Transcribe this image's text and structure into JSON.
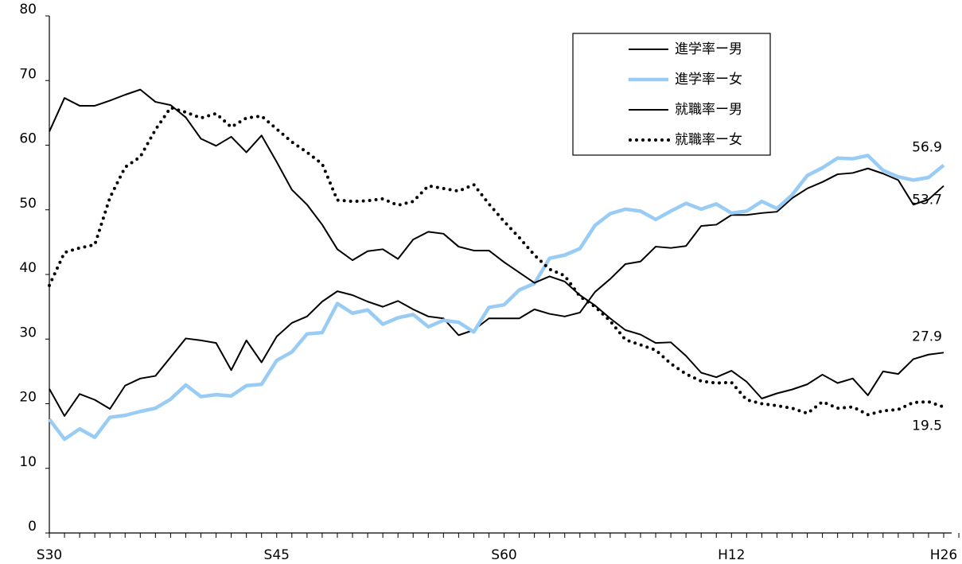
{
  "chart_data": {
    "type": "line",
    "categories": [
      "S30",
      null,
      null,
      null,
      null,
      null,
      null,
      null,
      null,
      null,
      null,
      null,
      null,
      null,
      null,
      "S45",
      null,
      null,
      null,
      null,
      null,
      null,
      null,
      null,
      null,
      null,
      null,
      null,
      null,
      null,
      "S60",
      null,
      null,
      null,
      null,
      null,
      null,
      null,
      null,
      null,
      null,
      null,
      null,
      null,
      null,
      "H12",
      null,
      null,
      null,
      null,
      null,
      null,
      null,
      null,
      null,
      null,
      null,
      null,
      null,
      "H26"
    ],
    "ylim": [
      0,
      80
    ],
    "yticks": [
      0,
      10,
      20,
      30,
      40,
      50,
      60,
      70,
      80
    ],
    "grid": false,
    "legend": "top-right",
    "series": [
      {
        "name": "進学率ー男",
        "color": "#000000",
        "dash": "solid",
        "width": 2,
        "values": [
          22.3,
          18.1,
          21.5,
          20.6,
          19.2,
          22.8,
          23.9,
          24.3,
          27.2,
          30.1,
          29.8,
          29.4,
          25.2,
          29.8,
          26.4,
          30.4,
          32.5,
          33.5,
          35.8,
          37.4,
          36.8,
          35.8,
          35.0,
          35.9,
          34.6,
          33.5,
          33.2,
          30.6,
          31.4,
          33.2,
          33.2,
          33.2,
          34.6,
          33.9,
          33.5,
          34.1,
          37.3,
          39.3,
          41.6,
          42.0,
          44.3,
          44.1,
          44.4,
          47.5,
          47.7,
          49.2,
          49.2,
          49.5,
          49.7,
          51.8,
          53.3,
          54.3,
          55.5,
          55.7,
          56.4,
          55.6,
          54.6,
          50.8,
          51.6,
          53.7
        ]
      },
      {
        "name": "進学率ー女",
        "color": "#99ccf5",
        "dash": "solid",
        "width": 4.5,
        "values": [
          17.6,
          14.5,
          16.1,
          14.8,
          17.9,
          18.2,
          18.8,
          19.3,
          20.7,
          22.9,
          21.1,
          21.4,
          21.2,
          22.8,
          23.0,
          26.7,
          28.0,
          30.8,
          31.0,
          35.5,
          34.0,
          34.5,
          32.3,
          33.3,
          33.8,
          31.9,
          32.9,
          32.6,
          31.1,
          34.9,
          35.3,
          37.6,
          38.6,
          42.5,
          43.0,
          44.0,
          47.6,
          49.4,
          50.1,
          49.8,
          48.5,
          49.8,
          51.0,
          50.1,
          50.9,
          49.5,
          49.8,
          51.3,
          50.2,
          52.3,
          55.3,
          56.5,
          58.0,
          57.9,
          58.4,
          56.1,
          55.1,
          54.6,
          55.0,
          56.9
        ]
      },
      {
        "name": "就職率ー男",
        "color": "#000000",
        "dash": "solid",
        "width": 2,
        "values": [
          62.1,
          67.3,
          66.1,
          66.1,
          66.9,
          67.8,
          68.6,
          66.7,
          66.2,
          64.3,
          61.0,
          59.9,
          61.3,
          58.9,
          61.5,
          57.4,
          53.1,
          50.8,
          47.7,
          43.9,
          42.2,
          43.6,
          43.9,
          42.4,
          45.4,
          46.6,
          46.3,
          44.3,
          43.7,
          43.7,
          41.9,
          40.3,
          38.7,
          39.7,
          38.9,
          36.8,
          35.2,
          33.2,
          31.4,
          30.7,
          29.4,
          29.5,
          27.4,
          24.8,
          24.1,
          25.1,
          23.4,
          20.8,
          21.6,
          22.2,
          23.0,
          24.5,
          23.2,
          23.9,
          21.3,
          25.0,
          24.6,
          26.9,
          27.6,
          27.9
        ]
      },
      {
        "name": "就職率ー女",
        "color": "#000000",
        "dash": "dotted",
        "width": 4,
        "values": [
          38.3,
          43.4,
          44.1,
          44.6,
          51.9,
          56.6,
          58.2,
          62.4,
          65.8,
          65.1,
          64.2,
          64.9,
          62.8,
          64.2,
          64.5,
          62.5,
          60.5,
          58.9,
          57.1,
          51.5,
          51.3,
          51.4,
          51.7,
          50.7,
          51.3,
          53.7,
          53.3,
          52.9,
          53.9,
          50.9,
          48.2,
          45.7,
          43.0,
          40.8,
          39.8,
          36.6,
          35.0,
          32.8,
          29.9,
          29.1,
          28.3,
          26.2,
          24.6,
          23.5,
          23.2,
          23.3,
          20.6,
          20.0,
          19.7,
          19.3,
          18.5,
          20.3,
          19.3,
          19.5,
          18.3,
          18.9,
          19.1,
          20.2,
          20.3,
          19.5
        ]
      }
    ]
  }
}
